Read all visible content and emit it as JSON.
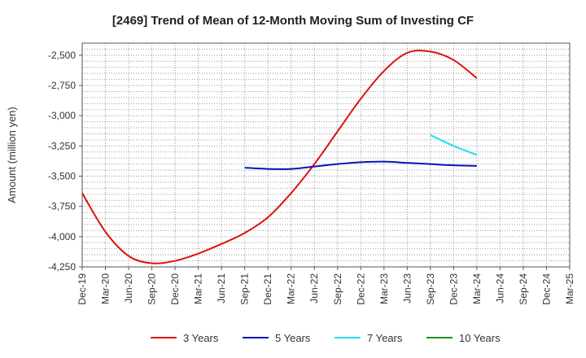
{
  "chart_data": {
    "type": "line",
    "title": "[2469]  Trend of Mean of 12-Month Moving Sum of Investing CF",
    "xlabel": "",
    "ylabel": "Amount (million yen)",
    "ylim": [
      -4250,
      -2400
    ],
    "yticks": [
      -2500,
      -2750,
      -3000,
      -3250,
      -3500,
      -3750,
      -4000,
      -4250
    ],
    "ytick_labels": [
      "-2,500",
      "-2,750",
      "-3,000",
      "-3,250",
      "-3,500",
      "-3,750",
      "-4,000",
      "-4,250"
    ],
    "categories": [
      "Dec-19",
      "Mar-20",
      "Jun-20",
      "Sep-20",
      "Dec-20",
      "Mar-21",
      "Jun-21",
      "Sep-21",
      "Dec-21",
      "Mar-22",
      "Jun-22",
      "Sep-22",
      "Dec-22",
      "Mar-23",
      "Jun-23",
      "Sep-23",
      "Dec-23",
      "Mar-24",
      "Jun-24",
      "Sep-24",
      "Dec-24",
      "Mar-25"
    ],
    "grid": true,
    "legend_position": "bottom",
    "series": [
      {
        "name": "3 Years",
        "color": "#dd1111",
        "values": [
          -3640,
          -3960,
          -4160,
          -4220,
          -4200,
          -4140,
          -4060,
          -3970,
          -3840,
          -3640,
          -3400,
          -3130,
          -2860,
          -2630,
          -2480,
          -2470,
          -2540,
          -2690,
          null,
          null,
          null,
          null
        ]
      },
      {
        "name": "5 Years",
        "color": "#0a14b4",
        "values": [
          null,
          null,
          null,
          null,
          null,
          null,
          null,
          -3430,
          -3440,
          -3440,
          -3420,
          -3400,
          -3385,
          -3380,
          -3390,
          -3400,
          -3410,
          -3415,
          null,
          null,
          null,
          null
        ]
      },
      {
        "name": "7 Years",
        "color": "#22ddee",
        "values": [
          null,
          null,
          null,
          null,
          null,
          null,
          null,
          null,
          null,
          null,
          null,
          null,
          null,
          null,
          null,
          -3160,
          -3250,
          -3325,
          null,
          null,
          null,
          null
        ]
      },
      {
        "name": "10 Years",
        "color": "#228b22",
        "values": [
          null,
          null,
          null,
          null,
          null,
          null,
          null,
          null,
          null,
          null,
          null,
          null,
          null,
          null,
          null,
          null,
          null,
          null,
          null,
          null,
          null,
          null
        ]
      }
    ]
  }
}
